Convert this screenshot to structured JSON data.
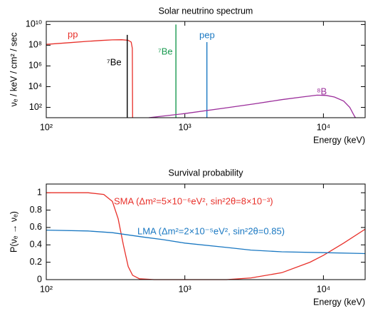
{
  "chart_data": [
    {
      "type": "line",
      "title": "Solar neutrino spectrum",
      "x_label": "Energy (keV)",
      "y_label": "νₑ / keV / cm² / sec",
      "log_x": true,
      "log_y": true,
      "xlim": [
        100,
        20000
      ],
      "xticks": [
        {
          "value": 100,
          "label": "10²"
        },
        {
          "value": 1000,
          "label": "10³"
        },
        {
          "value": 10000,
          "label": "10⁴"
        }
      ],
      "ylim": [
        10,
        20000000000
      ],
      "yticks": [
        {
          "value": 100,
          "label": "10²"
        },
        {
          "value": 10000,
          "label": "10⁴"
        },
        {
          "value": 1000000,
          "label": "10⁶"
        },
        {
          "value": 100000000,
          "label": "10⁸"
        },
        {
          "value": 10000000000,
          "label": "10¹⁰"
        }
      ],
      "series": [
        {
          "name": "pp",
          "color": "#e8302a",
          "x": [
            100,
            150,
            200,
            250,
            300,
            350,
            390,
            410,
            418,
            420
          ],
          "values": [
            120000000,
            180000000,
            240000000,
            290000000,
            330000000,
            340000000,
            300000000,
            200000000,
            50000000,
            10
          ]
        },
        {
          "name": "⁷Be",
          "color": "#000000",
          "x": [
            384
          ],
          "values": [
            1000000000
          ]
        },
        {
          "name": "⁷Be",
          "color": "#1a9a50",
          "x": [
            862
          ],
          "values": [
            10000000000
          ]
        },
        {
          "name": "pep",
          "color": "#1a78c2",
          "x": [
            1442
          ],
          "values": [
            200000000
          ]
        },
        {
          "name": "⁸B",
          "color": "#9b2e9b",
          "x": [
            550,
            1000,
            2000,
            3200,
            5000,
            7000,
            9000,
            10500,
            12000,
            14000,
            15500,
            16500,
            17000
          ],
          "values": [
            10,
            25,
            90,
            220,
            550,
            1000,
            1500,
            1400,
            1000,
            400,
            100,
            20,
            10
          ]
        }
      ]
    },
    {
      "type": "line",
      "title": "Survival probability",
      "x_label": "Energy (keV)",
      "y_label": "P(νₑ → νₑ)",
      "log_x": true,
      "log_y": false,
      "xlim": [
        100,
        20000
      ],
      "xticks": [
        {
          "value": 100,
          "label": "10²"
        },
        {
          "value": 1000,
          "label": "10³"
        },
        {
          "value": 10000,
          "label": "10⁴"
        }
      ],
      "ylim": [
        0,
        1.1
      ],
      "yticks": [
        0,
        0.2,
        0.4,
        0.6,
        0.8,
        1
      ],
      "series": [
        {
          "name": "SMA (Δm²=5×10⁻⁶eV², sin²2θ=8×10⁻³)",
          "color": "#e8302a",
          "x": [
            100,
            200,
            260,
            300,
            330,
            360,
            390,
            420,
            470,
            600,
            2000,
            3000,
            5000,
            8000,
            10000,
            14000,
            20000
          ],
          "values": [
            1.0,
            1.0,
            0.98,
            0.9,
            0.7,
            0.4,
            0.15,
            0.05,
            0.01,
            0,
            0,
            0.02,
            0.08,
            0.2,
            0.28,
            0.42,
            0.58
          ]
        },
        {
          "name": "LMA (Δm²=2×10⁻⁵eV², sin²2θ=0.85)",
          "color": "#1a78c2",
          "x": [
            100,
            200,
            300,
            500,
            700,
            1000,
            2000,
            3000,
            5000,
            10000,
            20000
          ],
          "values": [
            0.57,
            0.56,
            0.54,
            0.49,
            0.46,
            0.42,
            0.37,
            0.34,
            0.32,
            0.31,
            0.3
          ]
        }
      ]
    }
  ]
}
